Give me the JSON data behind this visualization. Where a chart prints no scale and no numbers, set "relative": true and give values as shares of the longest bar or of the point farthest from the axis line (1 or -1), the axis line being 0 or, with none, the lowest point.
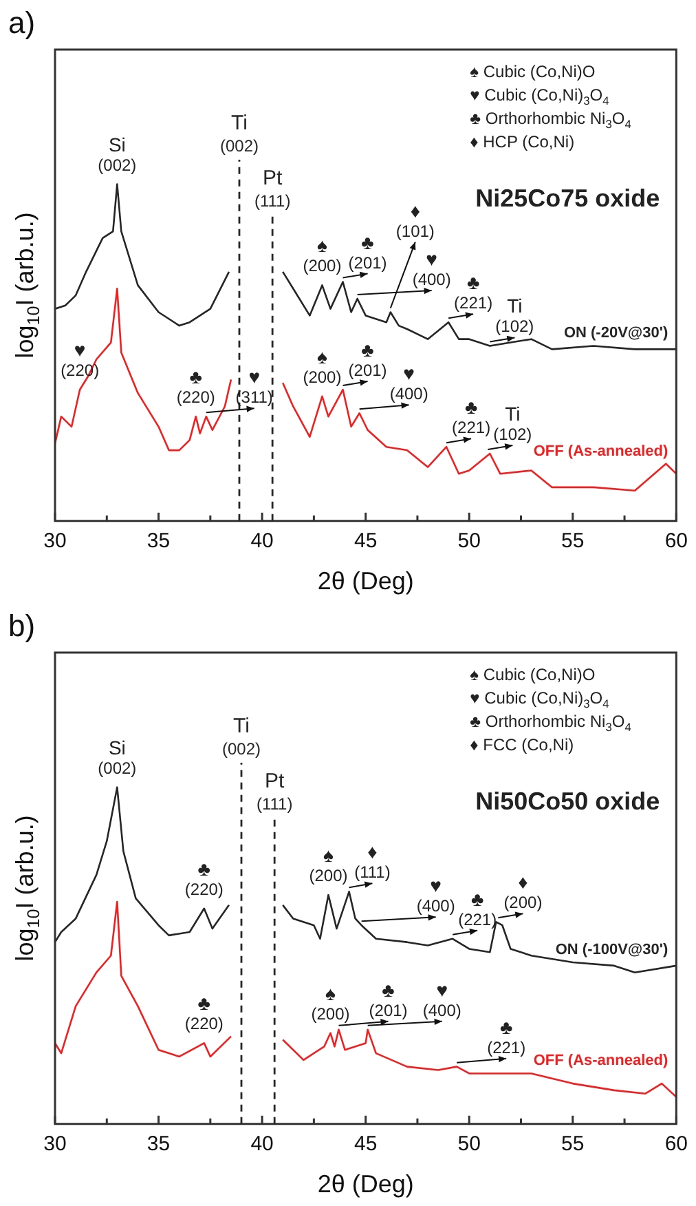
{
  "chart_data": [
    {
      "type": "line",
      "title": "a)",
      "xlabel": "2θ (Deg)",
      "ylabel": "log$_{10}$I (arb.u.)",
      "relative": true,
      "marker": "none",
      "xlim": [
        30,
        60
      ],
      "xticks": [
        30,
        {
          "value": 32.5,
          "label": null
        },
        35,
        {
          "value": 37.5,
          "label": null
        },
        40,
        {
          "value": 42.5,
          "label": null
        },
        45,
        {
          "value": 47.5,
          "label": null
        },
        50,
        {
          "value": 52.5,
          "label": null
        },
        55,
        {
          "value": 57.5,
          "label": null
        },
        60
      ],
      "series": [
        {
          "name": "ON (-20V@30')",
          "color": "#262626",
          "x": [
            30,
            30.5,
            31,
            31.5,
            32.3,
            32.8,
            33,
            33.2,
            34,
            35,
            36,
            36.5,
            37.5,
            38.4,
            39.7,
            41,
            41.5,
            42.3,
            42.9,
            43.3,
            43.9,
            44.3,
            44.6,
            45,
            46,
            46.2,
            46.6,
            47,
            48,
            49,
            49.5,
            50,
            51,
            52,
            53,
            54,
            56,
            58,
            60
          ],
          "values": [
            0.63,
            0.64,
            0.67,
            0.74,
            0.84,
            0.86,
            1.0,
            0.86,
            0.7,
            0.62,
            0.58,
            0.59,
            0.63,
            0.74,
            null,
            0.74,
            0.69,
            0.61,
            0.7,
            0.63,
            0.71,
            0.62,
            0.66,
            0.61,
            0.59,
            0.62,
            0.58,
            0.57,
            0.54,
            0.59,
            0.54,
            0.54,
            0.52,
            0.53,
            0.54,
            0.51,
            0.52,
            0.51,
            0.51
          ]
        },
        {
          "name": "OFF (As-annealed)",
          "color": "#f02020",
          "x": [
            30,
            30.3,
            30.8,
            31.2,
            31.6,
            32,
            32.7,
            33,
            33.2,
            34,
            35,
            35.5,
            36,
            36.5,
            36.8,
            37,
            37.3,
            37.6,
            38.2,
            38.5,
            39.7,
            41,
            41.5,
            42.3,
            42.9,
            43.2,
            43.9,
            44.3,
            44.7,
            45.1,
            46,
            47,
            48,
            48.9,
            49.5,
            50,
            51,
            51.5,
            53,
            54,
            56,
            58,
            59.5,
            60
          ],
          "values": [
            0.23,
            0.31,
            0.28,
            0.39,
            0.43,
            0.48,
            0.53,
            0.69,
            0.5,
            0.38,
            0.28,
            0.21,
            0.21,
            0.24,
            0.31,
            0.26,
            0.31,
            0.27,
            0.34,
            0.42,
            null,
            0.41,
            0.34,
            0.25,
            0.37,
            0.31,
            0.39,
            0.28,
            0.32,
            0.27,
            0.22,
            0.21,
            0.16,
            0.22,
            0.14,
            0.15,
            0.2,
            0.14,
            0.15,
            0.1,
            0.1,
            0.09,
            0.17,
            0.14
          ]
        }
      ],
      "ref_lines": [
        {
          "axis": "x",
          "value": 38.9,
          "label": "Ti (002)",
          "line_style": "dashed",
          "color": "#262626"
        },
        {
          "axis": "x",
          "value": 40.5,
          "label": "Pt (111)",
          "line_style": "dashed",
          "color": "#262626"
        }
      ],
      "annotations": [
        "♠ Cubic (Co,Ni)O",
        "♥ Cubic (Co,Ni)$_{3}$O$_{4}$",
        "♣ Orthorhombic Ni$_{3}$O$_{4}$",
        "♦ HCP (Co,Ni)",
        "Ni25Co75 oxide",
        {
          "text": "Si (002)",
          "x": 33,
          "y": 1.0
        },
        {
          "text": "♠ (200)",
          "x": 42.9,
          "y": 0.7
        },
        {
          "text": "♣ (201)",
          "x": 43.9,
          "y": 0.71
        },
        {
          "text": "♥ (400)",
          "x": 44.6,
          "y": 0.66
        },
        {
          "text": "♦ (101)",
          "x": 46.2,
          "y": 0.62
        },
        {
          "text": "♣ (221)",
          "x": 49,
          "y": 0.59
        },
        {
          "text": "Ti (102)",
          "x": 51,
          "y": 0.52
        },
        {
          "text": "♥ (220)",
          "x": 31.2,
          "y": 0.39
        },
        {
          "text": "♣ (220)",
          "x": 36.8,
          "y": 0.31
        },
        {
          "text": "♥ (311)",
          "x": 37.3,
          "y": 0.31
        },
        {
          "text": "♠ (200)",
          "x": 42.9,
          "y": 0.37
        },
        {
          "text": "♣ (201)",
          "x": 43.9,
          "y": 0.39
        },
        {
          "text": "♥ (400)",
          "x": 44.7,
          "y": 0.32
        },
        {
          "text": "♣ (221)",
          "x": 48.9,
          "y": 0.22
        },
        {
          "text": "Ti (102)",
          "x": 50.9,
          "y": 0.2
        }
      ]
    },
    {
      "type": "line",
      "title": "b)",
      "xlabel": "2θ (Deg)",
      "ylabel": "log$_{10}$I (arb.u.)",
      "relative": true,
      "marker": "none",
      "xlim": [
        30,
        60
      ],
      "xticks": [
        30,
        {
          "value": 32.5,
          "label": null
        },
        35,
        {
          "value": 37.5,
          "label": null
        },
        40,
        {
          "value": 42.5,
          "label": null
        },
        45,
        {
          "value": 47.5,
          "label": null
        },
        50,
        {
          "value": 52.5,
          "label": null
        },
        55,
        {
          "value": 57.5,
          "label": null
        },
        60
      ],
      "series": [
        {
          "name": "ON (-100V@30')",
          "color": "#262626",
          "x": [
            30,
            30.3,
            31,
            32,
            32.5,
            33,
            33.3,
            33.9,
            35,
            35.5,
            36.5,
            37.2,
            37.6,
            38.4,
            39.7,
            41,
            41.5,
            42.5,
            42.8,
            43.2,
            43.6,
            44.2,
            44.5,
            44.8,
            45.5,
            47,
            48,
            49.2,
            50,
            51,
            51.3,
            51.6,
            52,
            53,
            55,
            57,
            58,
            60
          ],
          "values": [
            0.54,
            0.57,
            0.61,
            0.74,
            0.84,
            1.0,
            0.81,
            0.67,
            0.59,
            0.56,
            0.57,
            0.64,
            0.58,
            0.65,
            null,
            0.65,
            0.61,
            0.59,
            0.55,
            0.68,
            0.58,
            0.69,
            0.61,
            0.59,
            0.55,
            0.54,
            0.53,
            0.55,
            0.52,
            0.51,
            0.6,
            0.59,
            0.52,
            0.5,
            0.48,
            0.47,
            0.45,
            0.47
          ]
        },
        {
          "name": "OFF (As-annealed)",
          "color": "#f02020",
          "x": [
            30,
            30.3,
            31,
            32,
            32.7,
            33,
            33.2,
            34,
            35,
            36,
            37.2,
            37.5,
            38.5,
            39.7,
            41,
            42,
            43,
            43.3,
            43.5,
            43.7,
            44,
            45,
            45.1,
            45.5,
            47,
            48.5,
            49.4,
            50,
            53,
            55,
            57,
            58.5,
            59.3,
            60
          ],
          "values": [
            0.24,
            0.21,
            0.35,
            0.45,
            0.5,
            0.66,
            0.44,
            0.35,
            0.22,
            0.2,
            0.24,
            0.2,
            0.26,
            null,
            0.25,
            0.19,
            0.23,
            0.27,
            0.23,
            0.28,
            0.22,
            0.24,
            0.28,
            0.21,
            0.17,
            0.16,
            0.17,
            0.15,
            0.15,
            0.12,
            0.1,
            0.09,
            0.12,
            0.08
          ]
        }
      ],
      "ref_lines": [
        {
          "axis": "x",
          "value": 39.0,
          "label": "Ti (002)",
          "line_style": "dashed",
          "color": "#262626"
        },
        {
          "axis": "x",
          "value": 40.6,
          "label": "Pt (111)",
          "line_style": "dashed",
          "color": "#262626"
        }
      ],
      "annotations": [
        "♠ Cubic (Co,Ni)O",
        "♥ Cubic (Co,Ni)$_{3}$O$_{4}$",
        "♣ Orthorhombic Ni$_{3}$O$_{4}$",
        "♦ FCC (Co,Ni)",
        "Ni50Co50 oxide",
        {
          "text": "Si (002)",
          "x": 33,
          "y": 1.0
        },
        {
          "text": "♣ (220)",
          "x": 37.2,
          "y": 0.64
        },
        {
          "text": "♠ (200)",
          "x": 43.2,
          "y": 0.68
        },
        {
          "text": "♦ (111)",
          "x": 44.2,
          "y": 0.69
        },
        {
          "text": "♥ (400)",
          "x": 44.8,
          "y": 0.59
        },
        {
          "text": "♣ (221)",
          "x": 49.2,
          "y": 0.55
        },
        {
          "text": "♦ (200)",
          "x": 51.4,
          "y": 0.6
        },
        {
          "text": "♣ (220)",
          "x": 37.2,
          "y": 0.24
        },
        {
          "text": "♠ (200)",
          "x": 43.3,
          "y": 0.27
        },
        {
          "text": "♣ (201)",
          "x": 43.7,
          "y": 0.28
        },
        {
          "text": "♥ (400)",
          "x": 45.1,
          "y": 0.28
        },
        {
          "text": "♣ (221)",
          "x": 49.4,
          "y": 0.17
        }
      ]
    }
  ]
}
